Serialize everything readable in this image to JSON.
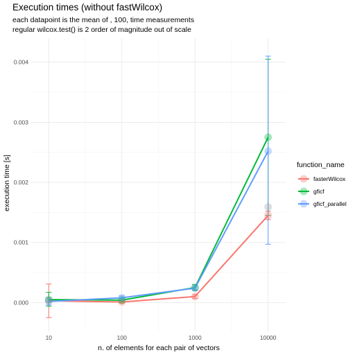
{
  "chart_data": {
    "type": "line",
    "title": "Execution times (without fastWilcox)",
    "subtitle_lines": [
      "each datapoint is the mean of , 100,  time measurements",
      " regular wilcox.test() is 2 order of magnitude out of scale"
    ],
    "xlabel": "n. of elements for each pair of vectors",
    "ylabel": "execution time [s]",
    "x_scale": "log10",
    "x": [
      10,
      100,
      1000,
      10000
    ],
    "x_tick_labels": [
      "10",
      "100",
      "1000",
      "10000"
    ],
    "ylim": [
      -0.00048,
      0.0044
    ],
    "y_ticks": [
      0,
      0.001,
      0.002,
      0.003,
      0.004
    ],
    "y_tick_labels": [
      "0.000",
      "0.001",
      "0.002",
      "0.003",
      "0.004"
    ],
    "grid": true,
    "legend": {
      "title": "function_name",
      "position": "right"
    },
    "series": [
      {
        "name": "fasterWilcox",
        "color": "#F8766D",
        "values": [
          3e-05,
          1e-05,
          0.0001,
          0.00145
        ],
        "error_low": [
          -0.00025,
          -1e-05,
          7e-05,
          0.00138
        ],
        "error_high": [
          0.00031,
          3e-05,
          0.00013,
          0.00152
        ]
      },
      {
        "name": "gficf",
        "color": "#00BA38",
        "values": [
          5e-05,
          4e-05,
          0.00025,
          0.00275
        ],
        "error_low": [
          -6e-05,
          1e-05,
          0.00021,
          0.00145
        ],
        "error_high": [
          0.00017,
          7e-05,
          0.0003,
          0.00405
        ]
      },
      {
        "name": "gficf_parallel",
        "color": "#619CFF",
        "values": [
          2e-05,
          8e-05,
          0.00024,
          0.00252
        ],
        "error_low": [
          -4e-05,
          5e-05,
          0.0002,
          0.00097
        ],
        "error_high": [
          8e-05,
          0.00011,
          0.00028,
          0.0041
        ]
      }
    ],
    "extra_points": [
      {
        "x": 10000,
        "y": 0.00159,
        "color": "#a0a0a0"
      }
    ]
  }
}
